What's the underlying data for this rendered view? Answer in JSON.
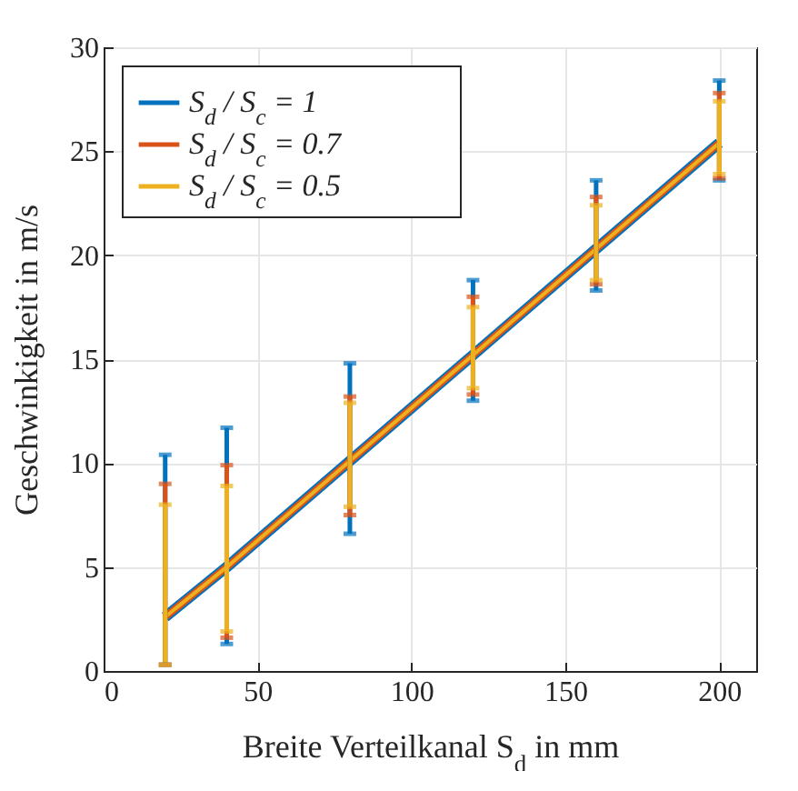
{
  "chart_data": {
    "type": "line",
    "xlabel": "Breite Verteilkanal S$_{d}$ in mm",
    "ylabel": "Geschwinkigkeit in m/s",
    "x": [
      20,
      40,
      80,
      120,
      160,
      200
    ],
    "xlim": [
      0,
      212
    ],
    "xticks": [
      0,
      50,
      100,
      150,
      200
    ],
    "ylim": [
      0,
      30
    ],
    "yticks": [
      0,
      5,
      10,
      15,
      20,
      25,
      30
    ],
    "grid": true,
    "legend": "top left",
    "marker": "none",
    "line_style": "solid",
    "series": [
      {
        "name": "S$_{d}$ / S$_{c}$ = 1",
        "color": "#0072bd",
        "values": [
          2.6,
          5.0,
          10.1,
          15.2,
          20.3,
          25.4
        ],
        "errors": [
          [
            0.3,
            10.4
          ],
          [
            1.3,
            11.7
          ],
          [
            6.6,
            14.8
          ],
          [
            13.0,
            18.8
          ],
          [
            18.3,
            23.6
          ],
          [
            23.6,
            28.4
          ]
        ]
      },
      {
        "name": "S$_{d}$ / S$_{c}$ = 0.7",
        "color": "#d95319",
        "values": [
          2.6,
          5.0,
          10.1,
          15.2,
          20.3,
          25.4
        ],
        "errors": [
          [
            0.3,
            9.0
          ],
          [
            1.6,
            9.9
          ],
          [
            7.5,
            13.2
          ],
          [
            13.3,
            18.0
          ],
          [
            18.6,
            22.8
          ],
          [
            23.7,
            27.8
          ]
        ]
      },
      {
        "name": "S$_{d}$ / S$_{c}$ = 0.5",
        "color": "#edb120",
        "values": [
          2.6,
          5.0,
          10.1,
          15.2,
          20.3,
          25.4
        ],
        "errors": [
          [
            0.3,
            8.0
          ],
          [
            1.9,
            8.9
          ],
          [
            7.9,
            12.9
          ],
          [
            13.6,
            17.5
          ],
          [
            18.8,
            22.4
          ],
          [
            23.9,
            27.4
          ]
        ]
      }
    ]
  }
}
